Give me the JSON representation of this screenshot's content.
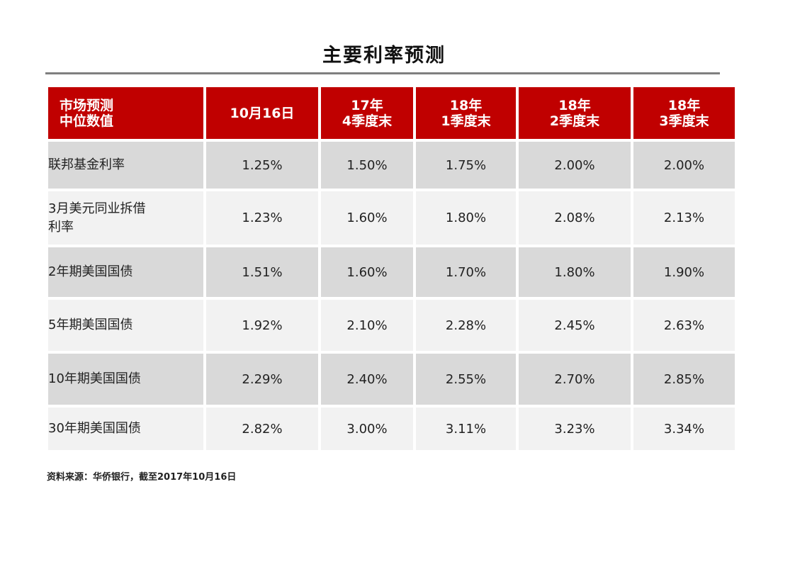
{
  "chart_data": {
    "type": "table",
    "title": "主要利率预测",
    "corner_header": [
      "市场预测",
      "中位数值"
    ],
    "columns": [
      [
        "10月16日"
      ],
      [
        "17年",
        "4季度末"
      ],
      [
        "18年",
        "1季度末"
      ],
      [
        "18年",
        "2季度末"
      ],
      [
        "18年",
        "3季度末"
      ]
    ],
    "rows": [
      {
        "label": [
          "联邦基金利率"
        ],
        "values": [
          "1.25%",
          "1.50%",
          "1.75%",
          "2.00%",
          "2.00%"
        ]
      },
      {
        "label": [
          "3月美元同业拆借",
          "利率"
        ],
        "values": [
          "1.23%",
          "1.60%",
          "1.80%",
          "2.08%",
          "2.13%"
        ]
      },
      {
        "label": [
          "2年期美国国债"
        ],
        "values": [
          "1.51%",
          "1.60%",
          "1.70%",
          "1.80%",
          "1.90%"
        ]
      },
      {
        "label": [
          "5年期美国国债"
        ],
        "values": [
          "1.92%",
          "2.10%",
          "2.28%",
          "2.45%",
          "2.63%"
        ]
      },
      {
        "label": [
          "10年期美国国债"
        ],
        "values": [
          "2.29%",
          "2.40%",
          "2.55%",
          "2.70%",
          "2.85%"
        ]
      },
      {
        "label": [
          "30年期美国国债"
        ],
        "values": [
          "2.82%",
          "3.00%",
          "3.11%",
          "3.23%",
          "3.34%"
        ]
      }
    ],
    "source": "资料来源：华侨银行，截至2017年10月16日",
    "colors": {
      "header_bg": "#c00000",
      "header_text": "#ffffff",
      "row_dark": "#d9d9d9",
      "row_light": "#f2f2f2",
      "rule": "#7f7f7f"
    }
  }
}
